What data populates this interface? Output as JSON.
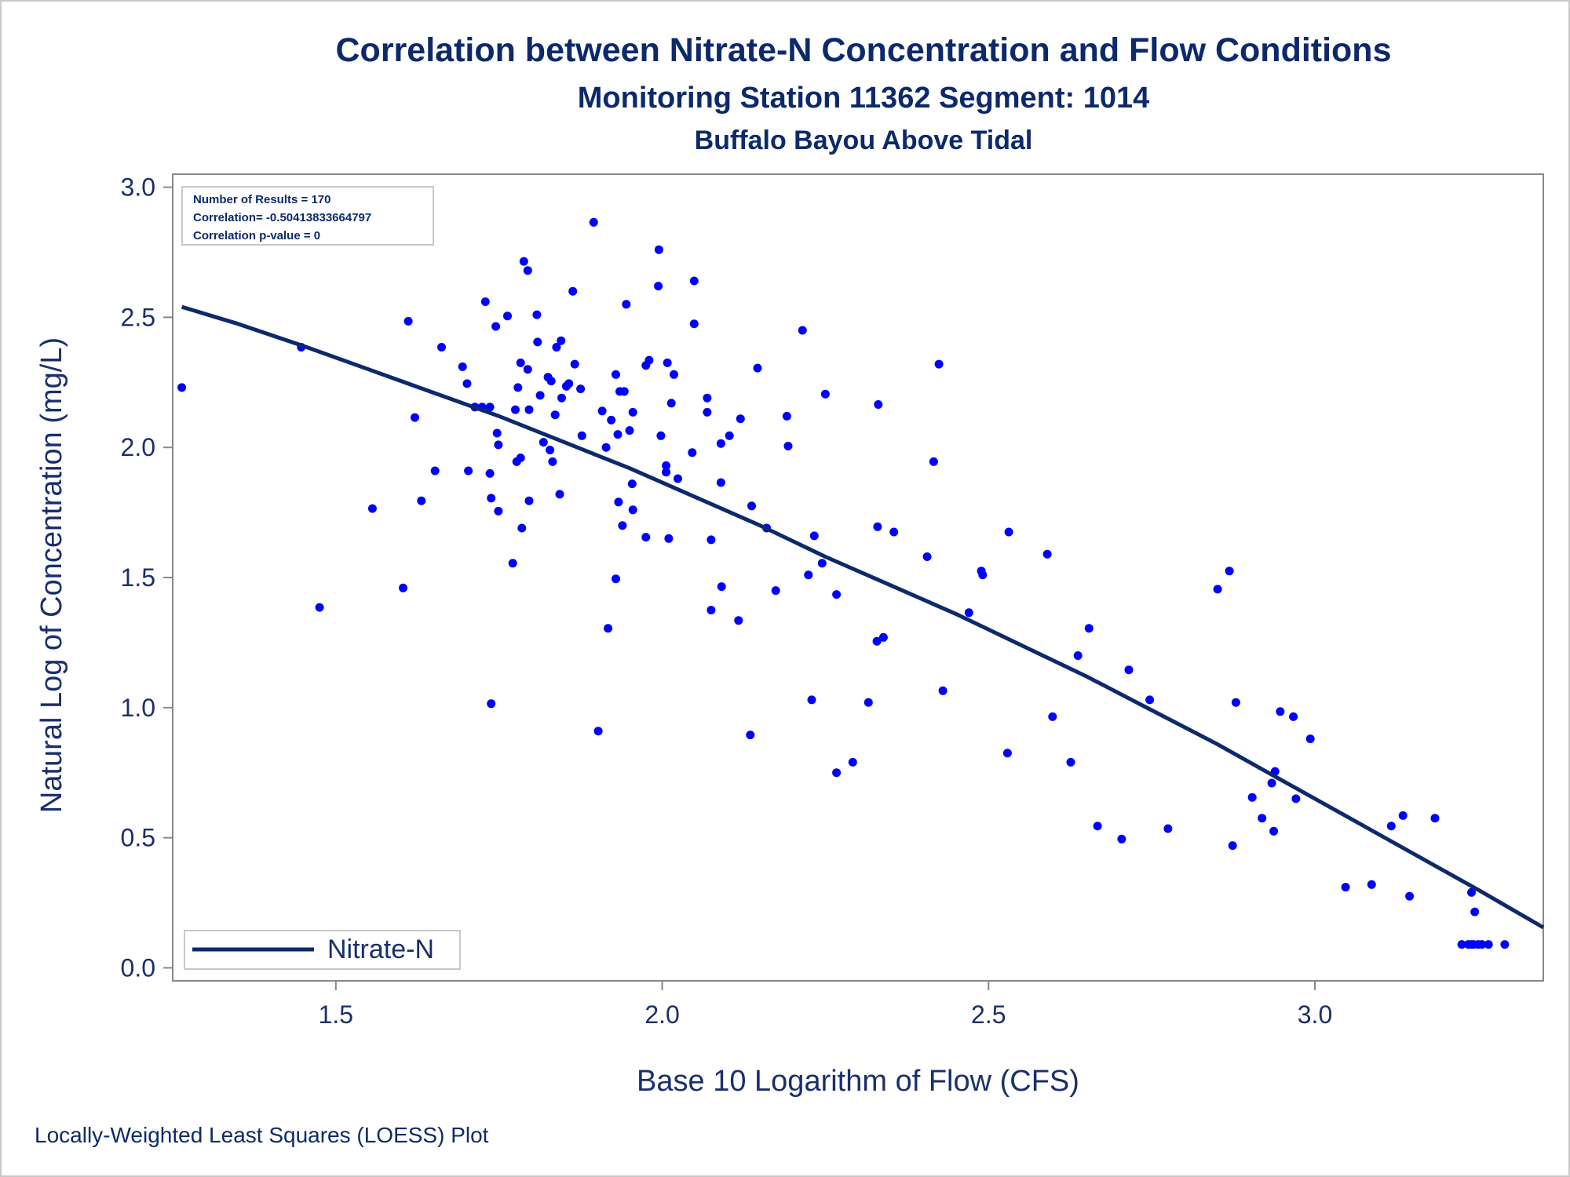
{
  "colors": {
    "text": "#0c2a6b",
    "axis": "#888888",
    "point": "#0000ff",
    "fit_line": "#0c2a6b"
  },
  "footnote": "Locally-Weighted Least Squares (LOESS) Plot",
  "stats": {
    "line1": "Number of Results = 170",
    "line2": "Correlation= -0.50413833664797",
    "line3": "Correlation p-value = 0"
  },
  "chart_data": {
    "type": "scatter",
    "title": "Correlation between Nitrate-N Concentration and Flow Conditions",
    "subtitle": "Monitoring Station 11362 Segment: 1014",
    "subtitle2": "Buffalo Bayou Above Tidal",
    "xlabel": "Base 10 Logarithm of Flow (CFS)",
    "ylabel": "Natural Log of Concentration (mg/L)",
    "xlim": [
      1.25,
      3.35
    ],
    "ylim": [
      -0.05,
      3.05
    ],
    "x_ticks": [
      1.5,
      2.0,
      2.5,
      3.0
    ],
    "x_tick_labels": [
      "1.5",
      "2.0",
      "2.5",
      "3.0"
    ],
    "y_ticks": [
      0.0,
      0.5,
      1.0,
      1.5,
      2.0,
      2.5,
      3.0
    ],
    "y_tick_labels": [
      "0.0",
      "0.5",
      "1.0",
      "1.5",
      "2.0",
      "2.5",
      "3.0"
    ],
    "grid": false,
    "legend_position": "bottom-left",
    "series": [
      {
        "type": "scatter",
        "points": [
          [
            1.264,
            2.23
          ],
          [
            1.447,
            2.385
          ],
          [
            1.475,
            1.385
          ],
          [
            1.556,
            1.765
          ],
          [
            1.603,
            1.46
          ],
          [
            1.611,
            2.485
          ],
          [
            1.621,
            2.115
          ],
          [
            1.631,
            1.795
          ],
          [
            1.652,
            1.91
          ],
          [
            1.662,
            2.385
          ],
          [
            1.694,
            2.31
          ],
          [
            1.701,
            2.245
          ],
          [
            1.703,
            1.91
          ],
          [
            1.713,
            2.155
          ],
          [
            1.724,
            2.155
          ],
          [
            1.729,
            2.56
          ],
          [
            1.736,
            2.155
          ],
          [
            1.736,
            1.9
          ],
          [
            1.738,
            1.805
          ],
          [
            1.738,
            1.015
          ],
          [
            1.745,
            2.465
          ],
          [
            1.747,
            2.055
          ],
          [
            1.749,
            2.01
          ],
          [
            1.749,
            1.755
          ],
          [
            1.763,
            2.505
          ],
          [
            1.771,
            1.555
          ],
          [
            1.775,
            2.145
          ],
          [
            1.777,
            1.945
          ],
          [
            1.779,
            2.23
          ],
          [
            1.783,
            1.96
          ],
          [
            1.783,
            2.325
          ],
          [
            1.785,
            1.69
          ],
          [
            1.788,
            2.715
          ],
          [
            1.794,
            2.68
          ],
          [
            1.794,
            2.3
          ],
          [
            1.796,
            1.795
          ],
          [
            1.796,
            2.145
          ],
          [
            1.808,
            2.51
          ],
          [
            1.809,
            2.405
          ],
          [
            1.813,
            2.2
          ],
          [
            1.818,
            2.02
          ],
          [
            1.825,
            2.27
          ],
          [
            1.828,
            1.99
          ],
          [
            1.83,
            2.255
          ],
          [
            1.832,
            1.945
          ],
          [
            1.836,
            2.125
          ],
          [
            1.838,
            2.385
          ],
          [
            1.843,
            1.82
          ],
          [
            1.845,
            2.41
          ],
          [
            1.846,
            2.19
          ],
          [
            1.853,
            2.235
          ],
          [
            1.857,
            2.245
          ],
          [
            1.863,
            2.6
          ],
          [
            1.866,
            2.32
          ],
          [
            1.875,
            2.225
          ],
          [
            1.877,
            2.045
          ],
          [
            1.895,
            2.865
          ],
          [
            1.902,
            0.91
          ],
          [
            1.908,
            2.14
          ],
          [
            1.914,
            2.0
          ],
          [
            1.917,
            1.305
          ],
          [
            1.922,
            2.105
          ],
          [
            1.929,
            2.28
          ],
          [
            1.929,
            1.495
          ],
          [
            1.932,
            2.05
          ],
          [
            1.933,
            1.79
          ],
          [
            1.935,
            2.215
          ],
          [
            1.939,
            1.7
          ],
          [
            1.942,
            2.215
          ],
          [
            1.945,
            2.55
          ],
          [
            1.95,
            2.065
          ],
          [
            1.954,
            1.86
          ],
          [
            1.955,
            2.135
          ],
          [
            1.955,
            1.76
          ],
          [
            1.975,
            2.315
          ],
          [
            1.975,
            1.655
          ],
          [
            1.98,
            2.335
          ],
          [
            1.994,
            2.62
          ],
          [
            1.995,
            2.76
          ],
          [
            1.998,
            2.045
          ],
          [
            2.006,
            1.93
          ],
          [
            2.006,
            1.905
          ],
          [
            2.008,
            2.325
          ],
          [
            2.01,
            1.65
          ],
          [
            2.014,
            2.17
          ],
          [
            2.018,
            2.28
          ],
          [
            2.024,
            1.88
          ],
          [
            2.046,
            1.98
          ],
          [
            2.049,
            2.475
          ],
          [
            2.049,
            2.64
          ],
          [
            2.069,
            2.19
          ],
          [
            2.069,
            2.135
          ],
          [
            2.075,
            1.375
          ],
          [
            2.075,
            1.645
          ],
          [
            2.09,
            1.865
          ],
          [
            2.09,
            2.015
          ],
          [
            2.091,
            1.465
          ],
          [
            2.103,
            2.045
          ],
          [
            2.117,
            1.335
          ],
          [
            2.12,
            2.11
          ],
          [
            2.135,
            0.895
          ],
          [
            2.137,
            1.775
          ],
          [
            2.146,
            2.305
          ],
          [
            2.16,
            1.69
          ],
          [
            2.174,
            1.45
          ],
          [
            2.191,
            2.12
          ],
          [
            2.193,
            2.005
          ],
          [
            2.215,
            2.45
          ],
          [
            2.224,
            1.51
          ],
          [
            2.229,
            1.03
          ],
          [
            2.233,
            1.66
          ],
          [
            2.245,
            1.555
          ],
          [
            2.25,
            2.205
          ],
          [
            2.267,
            0.75
          ],
          [
            2.267,
            1.435
          ],
          [
            2.292,
            0.79
          ],
          [
            2.316,
            1.02
          ],
          [
            2.329,
            1.255
          ],
          [
            2.33,
            1.695
          ],
          [
            2.331,
            2.165
          ],
          [
            2.339,
            1.27
          ],
          [
            2.355,
            1.675
          ],
          [
            2.406,
            1.58
          ],
          [
            2.416,
            1.945
          ],
          [
            2.424,
            2.32
          ],
          [
            2.43,
            1.065
          ],
          [
            2.47,
            1.365
          ],
          [
            2.489,
            1.525
          ],
          [
            2.491,
            1.51
          ],
          [
            2.529,
            0.825
          ],
          [
            2.531,
            1.675
          ],
          [
            2.59,
            1.59
          ],
          [
            2.598,
            0.965
          ],
          [
            2.626,
            0.79
          ],
          [
            2.637,
            1.2
          ],
          [
            2.654,
            1.305
          ],
          [
            2.667,
            0.545
          ],
          [
            2.704,
            0.495
          ],
          [
            2.715,
            1.145
          ],
          [
            2.747,
            1.03
          ],
          [
            2.775,
            0.535
          ],
          [
            2.851,
            1.455
          ],
          [
            2.869,
            1.525
          ],
          [
            2.874,
            0.47
          ],
          [
            2.879,
            1.02
          ],
          [
            2.904,
            0.655
          ],
          [
            2.919,
            0.575
          ],
          [
            2.934,
            0.71
          ],
          [
            2.939,
            0.755
          ],
          [
            2.937,
            0.525
          ],
          [
            2.947,
            0.985
          ],
          [
            2.967,
            0.965
          ],
          [
            2.971,
            0.65
          ],
          [
            2.993,
            0.88
          ],
          [
            3.047,
            0.31
          ],
          [
            3.087,
            0.32
          ],
          [
            3.117,
            0.545
          ],
          [
            3.135,
            0.585
          ],
          [
            3.145,
            0.275
          ],
          [
            3.184,
            0.575
          ],
          [
            3.225,
            0.09
          ],
          [
            3.235,
            0.09
          ],
          [
            3.24,
            0.09
          ],
          [
            3.24,
            0.29
          ],
          [
            3.243,
            0.09
          ],
          [
            3.245,
            0.215
          ],
          [
            3.25,
            0.09
          ],
          [
            3.266,
            0.09
          ],
          [
            3.291,
            0.09
          ],
          [
            3.256,
            0.09
          ]
        ]
      },
      {
        "name": "Nitrate-N",
        "type": "line",
        "points": [
          [
            1.264,
            2.54
          ],
          [
            1.35,
            2.475
          ],
          [
            1.45,
            2.39
          ],
          [
            1.55,
            2.3
          ],
          [
            1.65,
            2.21
          ],
          [
            1.75,
            2.12
          ],
          [
            1.85,
            2.02
          ],
          [
            1.95,
            1.92
          ],
          [
            2.05,
            1.81
          ],
          [
            2.15,
            1.7
          ],
          [
            2.25,
            1.58
          ],
          [
            2.35,
            1.47
          ],
          [
            2.45,
            1.36
          ],
          [
            2.55,
            1.24
          ],
          [
            2.65,
            1.12
          ],
          [
            2.75,
            0.99
          ],
          [
            2.85,
            0.86
          ],
          [
            2.95,
            0.72
          ],
          [
            3.05,
            0.58
          ],
          [
            3.15,
            0.44
          ],
          [
            3.25,
            0.3
          ],
          [
            3.35,
            0.155
          ]
        ]
      }
    ]
  }
}
